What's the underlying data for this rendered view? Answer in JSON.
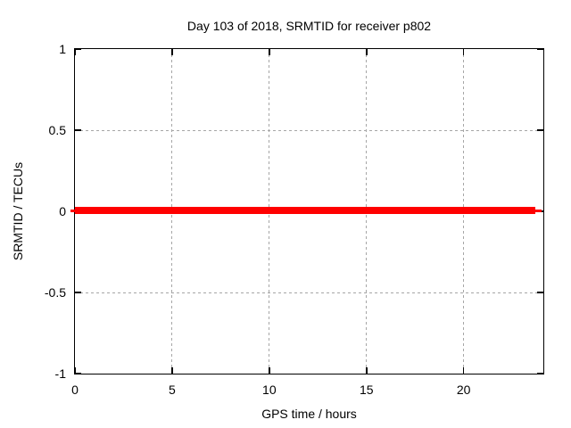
{
  "chart_data": {
    "type": "line",
    "title": "Day 103 of 2018, SRMTID for receiver p802",
    "xlabel": "GPS time / hours",
    "ylabel": "SRMTID / TECUs",
    "xlim": [
      0,
      24.1
    ],
    "ylim": [
      -1,
      1
    ],
    "xticks": [
      {
        "value": 0,
        "label": "0"
      },
      {
        "value": 5,
        "label": "5"
      },
      {
        "value": 10,
        "label": "10"
      },
      {
        "value": 15,
        "label": "15"
      },
      {
        "value": 20,
        "label": "20"
      }
    ],
    "yticks": [
      {
        "value": 1,
        "label": "1"
      },
      {
        "value": 0.5,
        "label": "0.5"
      },
      {
        "value": 0,
        "label": "0"
      },
      {
        "value": -0.5,
        "label": "-0.5"
      },
      {
        "value": -1,
        "label": "-1"
      }
    ],
    "grid": true,
    "grid_color": "#a6a6a6",
    "border_color": "#000000",
    "background": "#ffffff",
    "legend": "none",
    "series": [
      {
        "name": "SRMTID",
        "color": "#ff0000",
        "constant_value": 0,
        "x_range": [
          0,
          24
        ],
        "x": [
          0,
          24
        ],
        "y": [
          0,
          0
        ],
        "description": "SRMTID is constant at 0 TECUs across all 24 hours"
      }
    ],
    "segments": [
      {
        "x1": -0.23,
        "x2": 0,
        "y": 0,
        "weight": "thin"
      },
      {
        "x1": 0,
        "x2": 23.7,
        "y": 0,
        "weight": "thick"
      },
      {
        "x1": 23.7,
        "x2": 24.02,
        "y": 0,
        "weight": "thin"
      }
    ]
  }
}
